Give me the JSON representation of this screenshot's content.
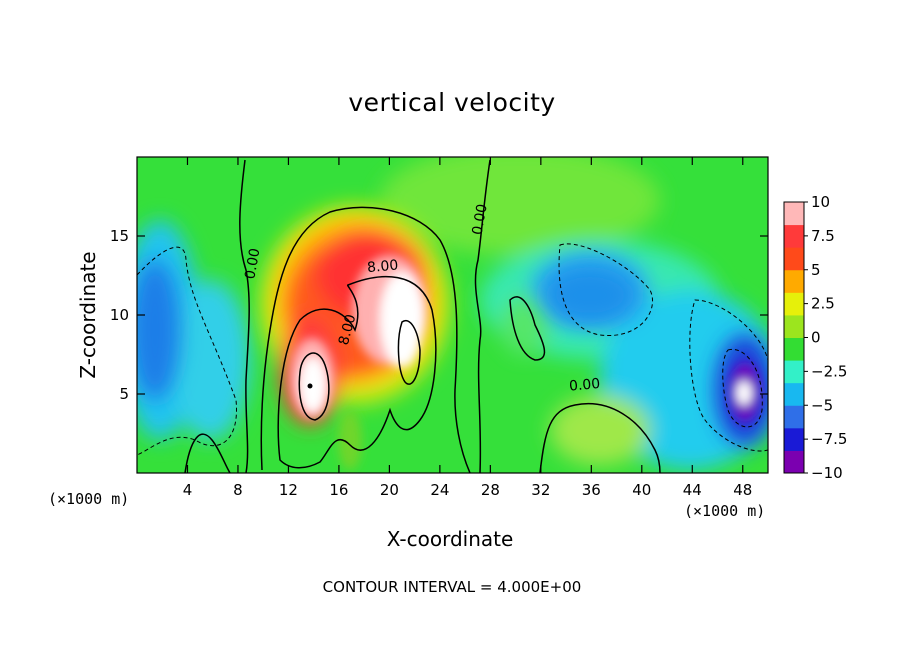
{
  "chart_data": {
    "type": "heatmap",
    "title": "vertical velocity",
    "xlabel": "X-coordinate",
    "ylabel": "Z-coordinate",
    "x_unit_note": "(×1000 m)",
    "x_unit_note_right": "(×1000 m)",
    "footer": "CONTOUR INTERVAL = 4.000E+00",
    "xlim": [
      0,
      50
    ],
    "ylim": [
      0,
      20
    ],
    "x_ticks": [
      4,
      8,
      12,
      16,
      20,
      24,
      28,
      32,
      36,
      40,
      44,
      48
    ],
    "y_ticks": [
      5,
      10,
      15
    ],
    "colorbar": {
      "ticks": [
        10,
        7.5,
        5,
        2.5,
        0,
        -2.5,
        -5,
        -7.5,
        -10
      ],
      "tick_labels": [
        "10",
        "7.5",
        "5",
        "2.5",
        "0",
        "−2.5",
        "−5",
        "−7.5",
        "−10"
      ],
      "range": [
        -10,
        10
      ],
      "colors": [
        "#7b00b0",
        "#1a1ad6",
        "#2f6fe8",
        "#18b8f0",
        "#33f0c8",
        "#33dd33",
        "#9ce51e",
        "#e6f00a",
        "#ffaa00",
        "#ff4a1a",
        "#ff3a3a",
        "#ffb8b8"
      ]
    },
    "contour_interval": 4.0,
    "contour_labels": [
      {
        "text": "0.00",
        "x": 9.5,
        "z": 13.2,
        "angle": -80
      },
      {
        "text": "0.00",
        "x": 27.5,
        "z": 16.0,
        "angle": -80
      },
      {
        "text": "0.00",
        "x": 35.5,
        "z": 5.3,
        "angle": -5
      },
      {
        "text": "8.00",
        "x": 19.5,
        "z": 12.8,
        "angle": -5
      },
      {
        "text": "8.00",
        "x": 17.0,
        "z": 9.0,
        "angle": -75
      }
    ],
    "features": [
      {
        "kind": "updraft",
        "x": 17.5,
        "z": 9.0,
        "peak": 10
      },
      {
        "kind": "updraft-core",
        "x": 13.8,
        "z": 5.5,
        "peak": 12
      },
      {
        "kind": "updraft-core",
        "x": 21.0,
        "z": 9.0,
        "peak": 12
      },
      {
        "kind": "downdraft",
        "x": 48.0,
        "z": 5.0,
        "peak": -12
      },
      {
        "kind": "downdraft",
        "x": 0.5,
        "z": 9.0,
        "peak": -7
      },
      {
        "kind": "downdraft",
        "x": 36.5,
        "z": 12.0,
        "peak": -5
      }
    ]
  }
}
